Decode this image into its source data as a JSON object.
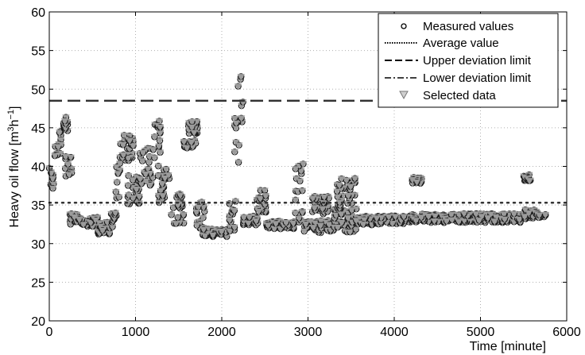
{
  "chart_data": {
    "type": "scatter",
    "title": "",
    "xlabel": "Time [minute]",
    "ylabel_parts": {
      "base": "Heavy oil flow [m",
      "sup1": "3",
      "mid": "h",
      "sup2": "−1",
      "end": "]"
    },
    "xlim": [
      0,
      6000
    ],
    "ylim": [
      20,
      60
    ],
    "x_ticks": [
      0,
      1000,
      2000,
      3000,
      4000,
      5000,
      6000
    ],
    "y_ticks": [
      20,
      25,
      30,
      35,
      40,
      45,
      50,
      55,
      60
    ],
    "grid": true,
    "legend_position": "top-right",
    "legend": [
      {
        "label": "Measured values",
        "marker": "circle"
      },
      {
        "label": "Average value",
        "line": "dotted"
      },
      {
        "label": "Upper deviation limit",
        "line": "dashed"
      },
      {
        "label": "Lower deviation limit",
        "line": "dash-dot"
      },
      {
        "label": "Selected data",
        "marker": "triangle-down"
      }
    ],
    "average_value": 35.3,
    "upper_deviation_limit": 48.5,
    "colors": {
      "measured": "#1a1a1a",
      "selected": "#9b9b9b",
      "lines": "#333333",
      "grid": "#b0b0b0"
    },
    "segments": [
      {
        "x": [
          0,
          60
        ],
        "y_base": 38.5,
        "spread": 1.5
      },
      {
        "x": [
          60,
          140
        ],
        "y_base": 42.5,
        "spread": 2.5
      },
      {
        "x": [
          140,
          220
        ],
        "y_base": 45.5,
        "spread": 1.0
      },
      {
        "x": [
          180,
          260
        ],
        "y_base": 40.0,
        "spread": 1.5
      },
      {
        "x": [
          240,
          330
        ],
        "y_base": 33.2,
        "spread": 0.7
      },
      {
        "x": [
          330,
          560
        ],
        "y_base": 32.8,
        "spread": 0.6
      },
      {
        "x": [
          560,
          700
        ],
        "y_base": 32.0,
        "spread": 0.8
      },
      {
        "x": [
          700,
          780
        ],
        "y_base": 33.0,
        "spread": 1.0
      },
      {
        "x": [
          760,
          820
        ],
        "y_base": 38.0,
        "spread": 2.5
      },
      {
        "x": [
          820,
          980
        ],
        "y_base": 42.5,
        "spread": 1.8
      },
      {
        "x": [
          900,
          1050
        ],
        "y_base": 37.0,
        "spread": 2.0
      },
      {
        "x": [
          1050,
          1200
        ],
        "y_base": 40.0,
        "spread": 2.5
      },
      {
        "x": [
          1200,
          1300
        ],
        "y_base": 43.5,
        "spread": 2.5
      },
      {
        "x": [
          1250,
          1400
        ],
        "y_base": 38.0,
        "spread": 3.0
      },
      {
        "x": [
          1400,
          1560
        ],
        "y_base": 34.5,
        "spread": 2.0
      },
      {
        "x": [
          1560,
          1700
        ],
        "y_base": 42.8,
        "spread": 0.6
      },
      {
        "x": [
          1600,
          1720
        ],
        "y_base": 45.0,
        "spread": 0.8
      },
      {
        "x": [
          1700,
          1800
        ],
        "y_base": 34.0,
        "spread": 2.0
      },
      {
        "x": [
          1780,
          2080
        ],
        "y_base": 31.4,
        "spread": 0.5
      },
      {
        "x": [
          2080,
          2150
        ],
        "y_base": 33.5,
        "spread": 2.0
      },
      {
        "x": [
          2150,
          2250
        ],
        "y_base": 45.0,
        "spread": 10.0
      },
      {
        "x": [
          2250,
          2420
        ],
        "y_base": 33.0,
        "spread": 0.6
      },
      {
        "x": [
          2400,
          2520
        ],
        "y_base": 35.5,
        "spread": 1.5
      },
      {
        "x": [
          2520,
          2850
        ],
        "y_base": 32.4,
        "spread": 0.5
      },
      {
        "x": [
          2850,
          2950
        ],
        "y_base": 36.5,
        "spread": 4.0
      },
      {
        "x": [
          2950,
          3300
        ],
        "y_base": 32.2,
        "spread": 0.8
      },
      {
        "x": [
          3050,
          3250
        ],
        "y_base": 35.0,
        "spread": 1.2
      },
      {
        "x": [
          3300,
          3560
        ],
        "y_base": 33.0,
        "spread": 1.5
      },
      {
        "x": [
          3330,
          3550
        ],
        "y_base": 36.5,
        "spread": 2.0
      },
      {
        "x": [
          3560,
          4200
        ],
        "y_base": 33.0,
        "spread": 0.6
      },
      {
        "x": [
          4200,
          4320
        ],
        "y_base": 38.2,
        "spread": 0.4
      },
      {
        "x": [
          4200,
          5500
        ],
        "y_base": 33.3,
        "spread": 0.6
      },
      {
        "x": [
          5500,
          5580
        ],
        "y_base": 38.5,
        "spread": 0.5
      },
      {
        "x": [
          5500,
          5760
        ],
        "y_base": 33.8,
        "spread": 0.6
      }
    ]
  }
}
